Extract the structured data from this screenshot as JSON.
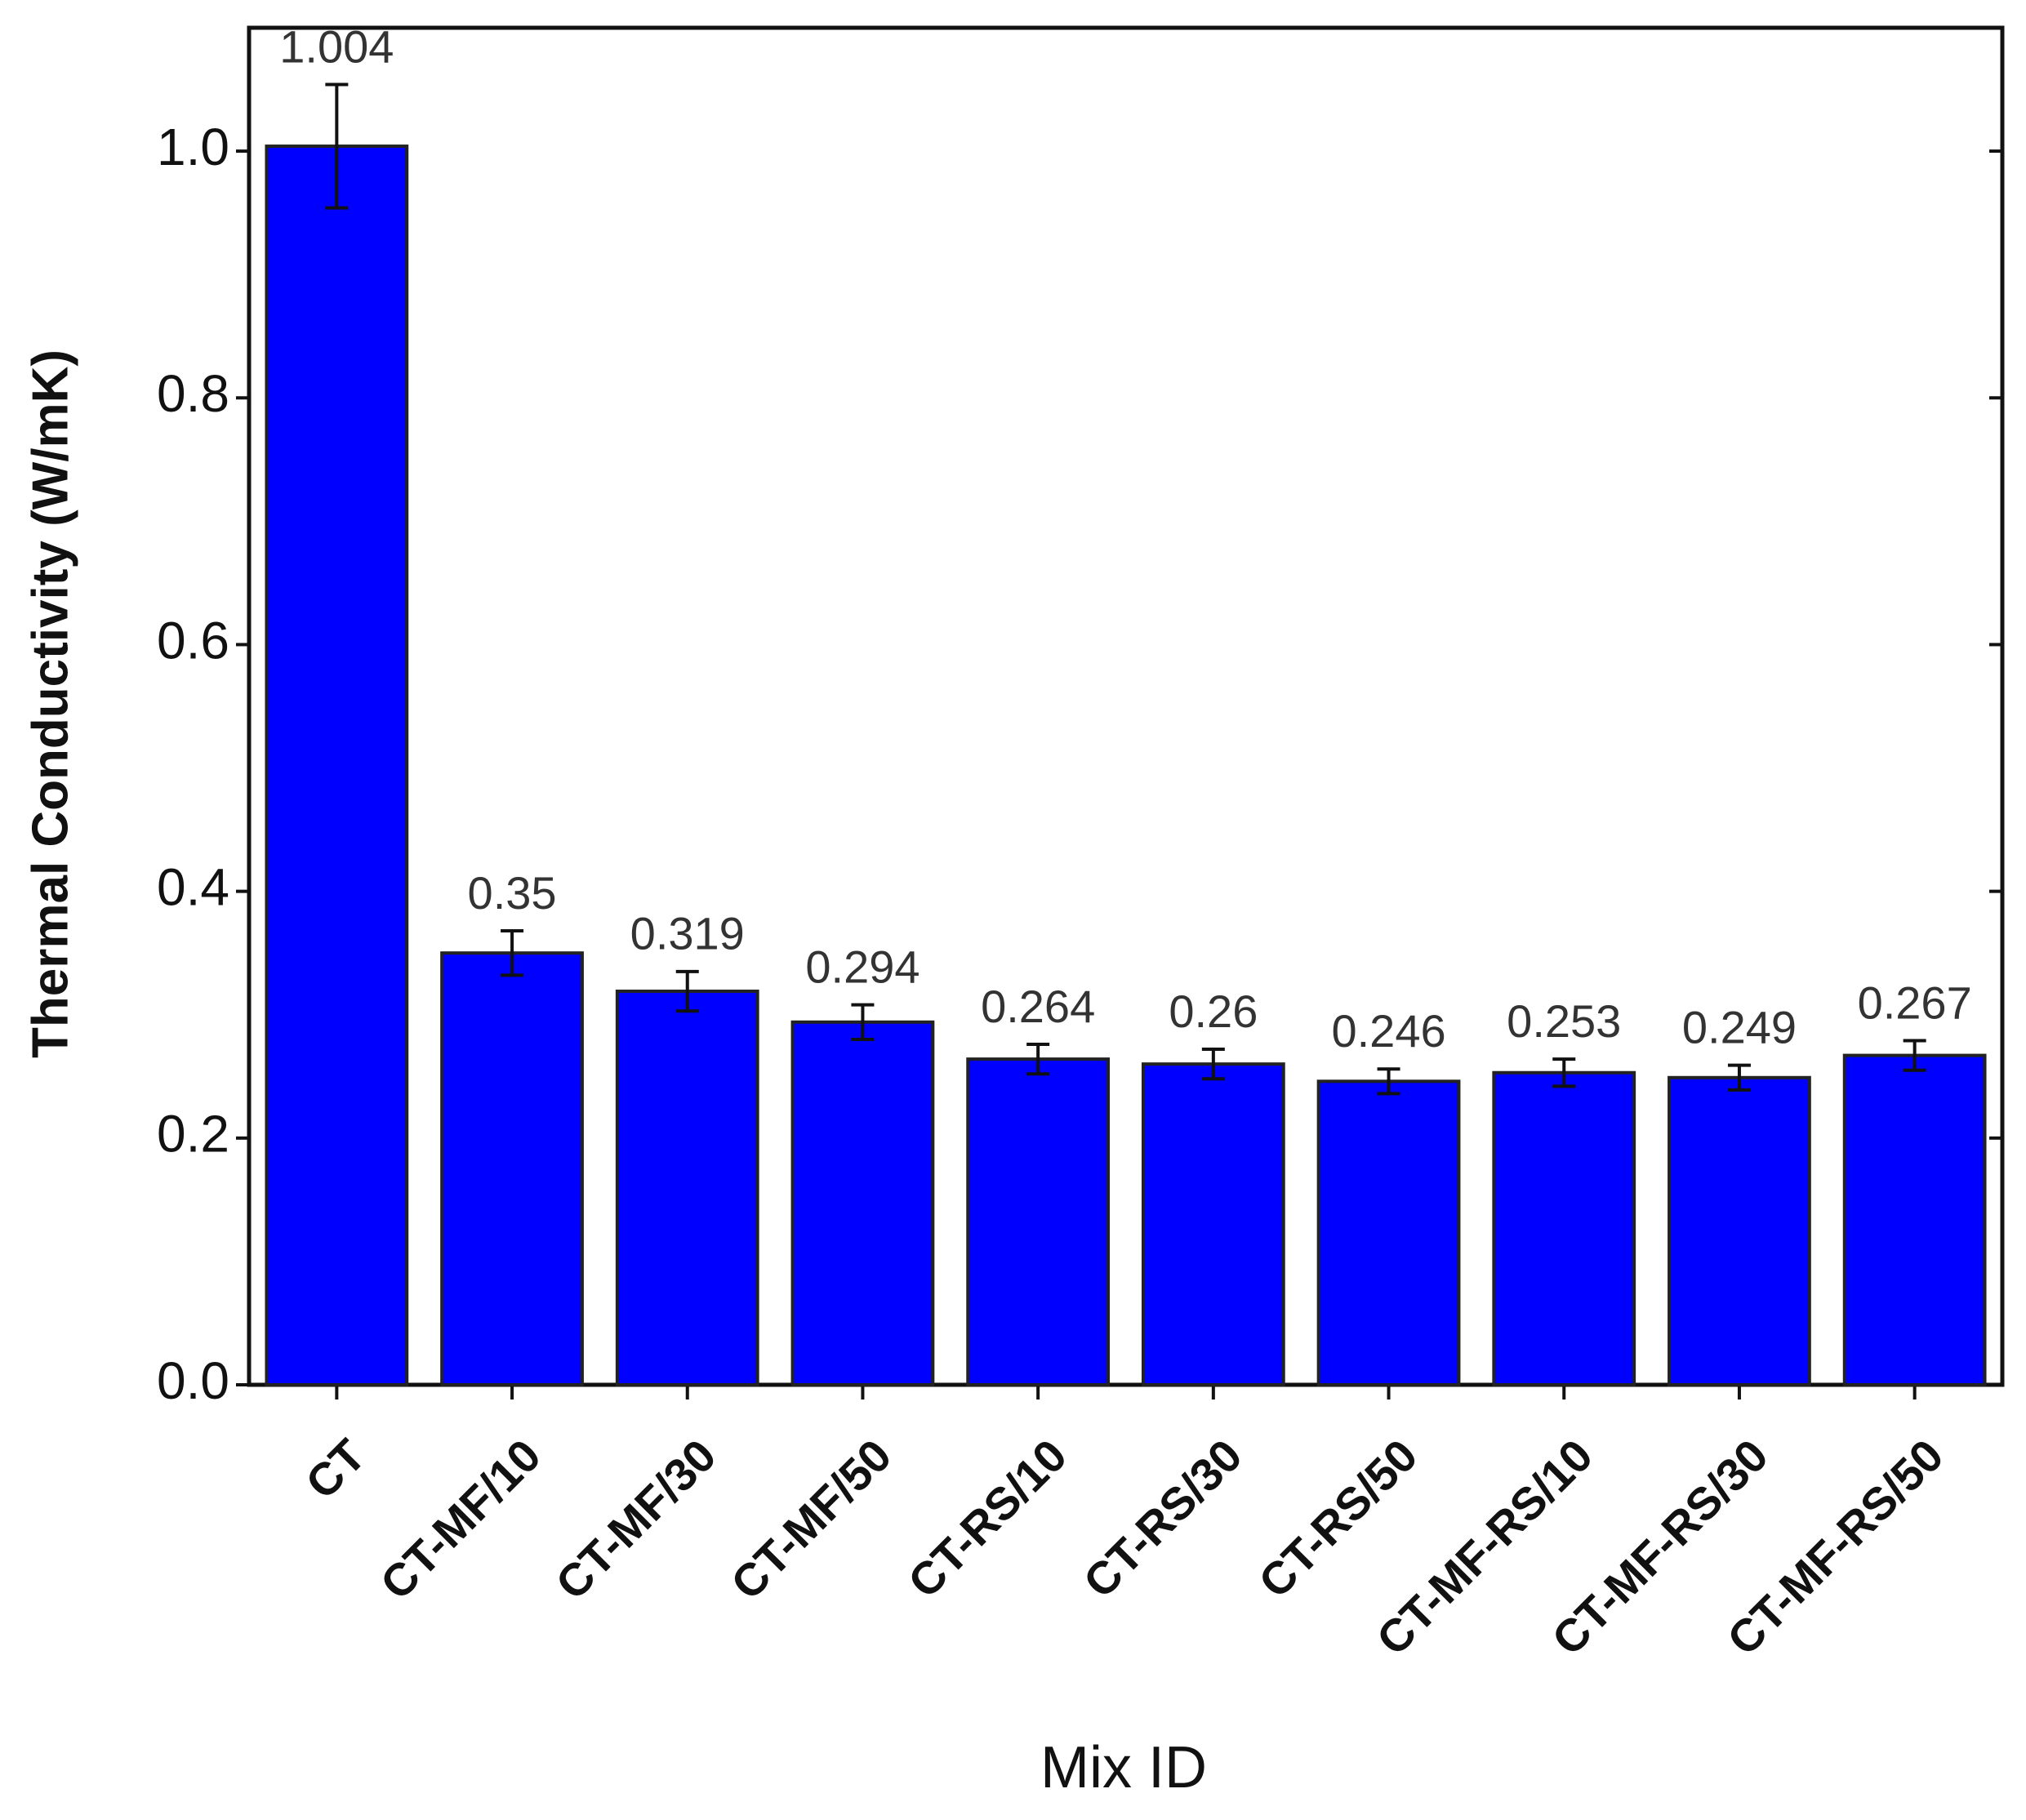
{
  "chart_data": {
    "type": "bar",
    "x_label": "Mix ID",
    "y_label": "Thermal Conductivity (W/mK)",
    "categories": [
      "CT",
      "CT-MF/10",
      "CT-MF/30",
      "CT-MF/50",
      "CT-RS/10",
      "CT-RS/30",
      "CT-RS/50",
      "CT-MF-RS/10",
      "CT-MF-RS/30",
      "CT-MF-RS/50"
    ],
    "values": [
      1.004,
      0.35,
      0.319,
      0.294,
      0.264,
      0.26,
      0.246,
      0.253,
      0.249,
      0.267
    ],
    "errors": [
      0.05,
      0.018,
      0.016,
      0.014,
      0.012,
      0.012,
      0.01,
      0.011,
      0.01,
      0.012
    ],
    "color": "#0000ff",
    "ylim": [
      0,
      1.1
    ],
    "yticks": [
      {
        "value": 0,
        "label": "0.0"
      },
      0.2,
      0.4,
      0.6,
      0.8,
      {
        "value": 1,
        "label": "1.0"
      }
    ],
    "grid": false
  }
}
